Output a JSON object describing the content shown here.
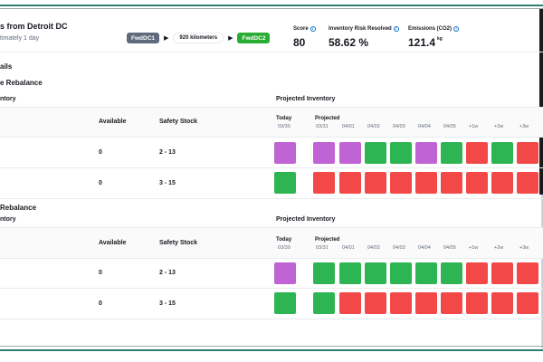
{
  "header": {
    "title": "s from Detroit DC",
    "subtitle": "timately 1 day",
    "route": {
      "from": "FwdDC1",
      "distance": "920 kilometers",
      "to": "FwdDC2"
    }
  },
  "metrics": [
    {
      "label": "Score",
      "value": "80",
      "unit": ""
    },
    {
      "label": "Inventory Risk Resolved",
      "value": "58.62 %",
      "unit": ""
    },
    {
      "label": "Emissions (CO2)",
      "value": "121.4",
      "unit": "kg"
    }
  ],
  "details_title": "ails",
  "sections": [
    {
      "title": "e Rebalance",
      "inventory_heading": "ntory",
      "projected_heading": "Projected Inventory",
      "columns": {
        "available": "Available",
        "safety_stock": "Safety Stock",
        "today": "Today",
        "projected": "Projected"
      },
      "dates": [
        "03/30",
        "03/31",
        "04/01",
        "04/02",
        "04/03",
        "04/04",
        "04/05",
        "+1w",
        "+2w",
        "+3w"
      ],
      "rows": [
        {
          "available": "0",
          "safety_stock": "2 - 13",
          "statuses": [
            "purple",
            "purple",
            "purple",
            "green",
            "green",
            "purple",
            "green",
            "red",
            "green",
            "red"
          ]
        },
        {
          "available": "0",
          "safety_stock": "3 - 15",
          "statuses": [
            "green",
            "red",
            "red",
            "red",
            "red",
            "red",
            "red",
            "red",
            "red",
            "red"
          ]
        }
      ]
    },
    {
      "title": "Rebalance",
      "inventory_heading": "ntory",
      "projected_heading": "Projected Inventory",
      "columns": {
        "available": "Available",
        "safety_stock": "Safety Stock",
        "today": "Today",
        "projected": "Projected"
      },
      "dates": [
        "03/30",
        "03/31",
        "04/01",
        "04/02",
        "04/03",
        "04/04",
        "04/05",
        "+1w",
        "+2w",
        "+3w"
      ],
      "rows": [
        {
          "available": "0",
          "safety_stock": "2 - 13",
          "statuses": [
            "purple",
            "green",
            "green",
            "green",
            "green",
            "green",
            "green",
            "red",
            "red",
            "red"
          ]
        },
        {
          "available": "0",
          "safety_stock": "3 - 15",
          "statuses": [
            "green",
            "green",
            "red",
            "red",
            "red",
            "red",
            "red",
            "red",
            "red",
            "red"
          ]
        }
      ]
    }
  ],
  "colors": {
    "purple": "#c063d4",
    "green": "#2db553",
    "red": "#f24848",
    "frame": "#2e7d6e"
  }
}
